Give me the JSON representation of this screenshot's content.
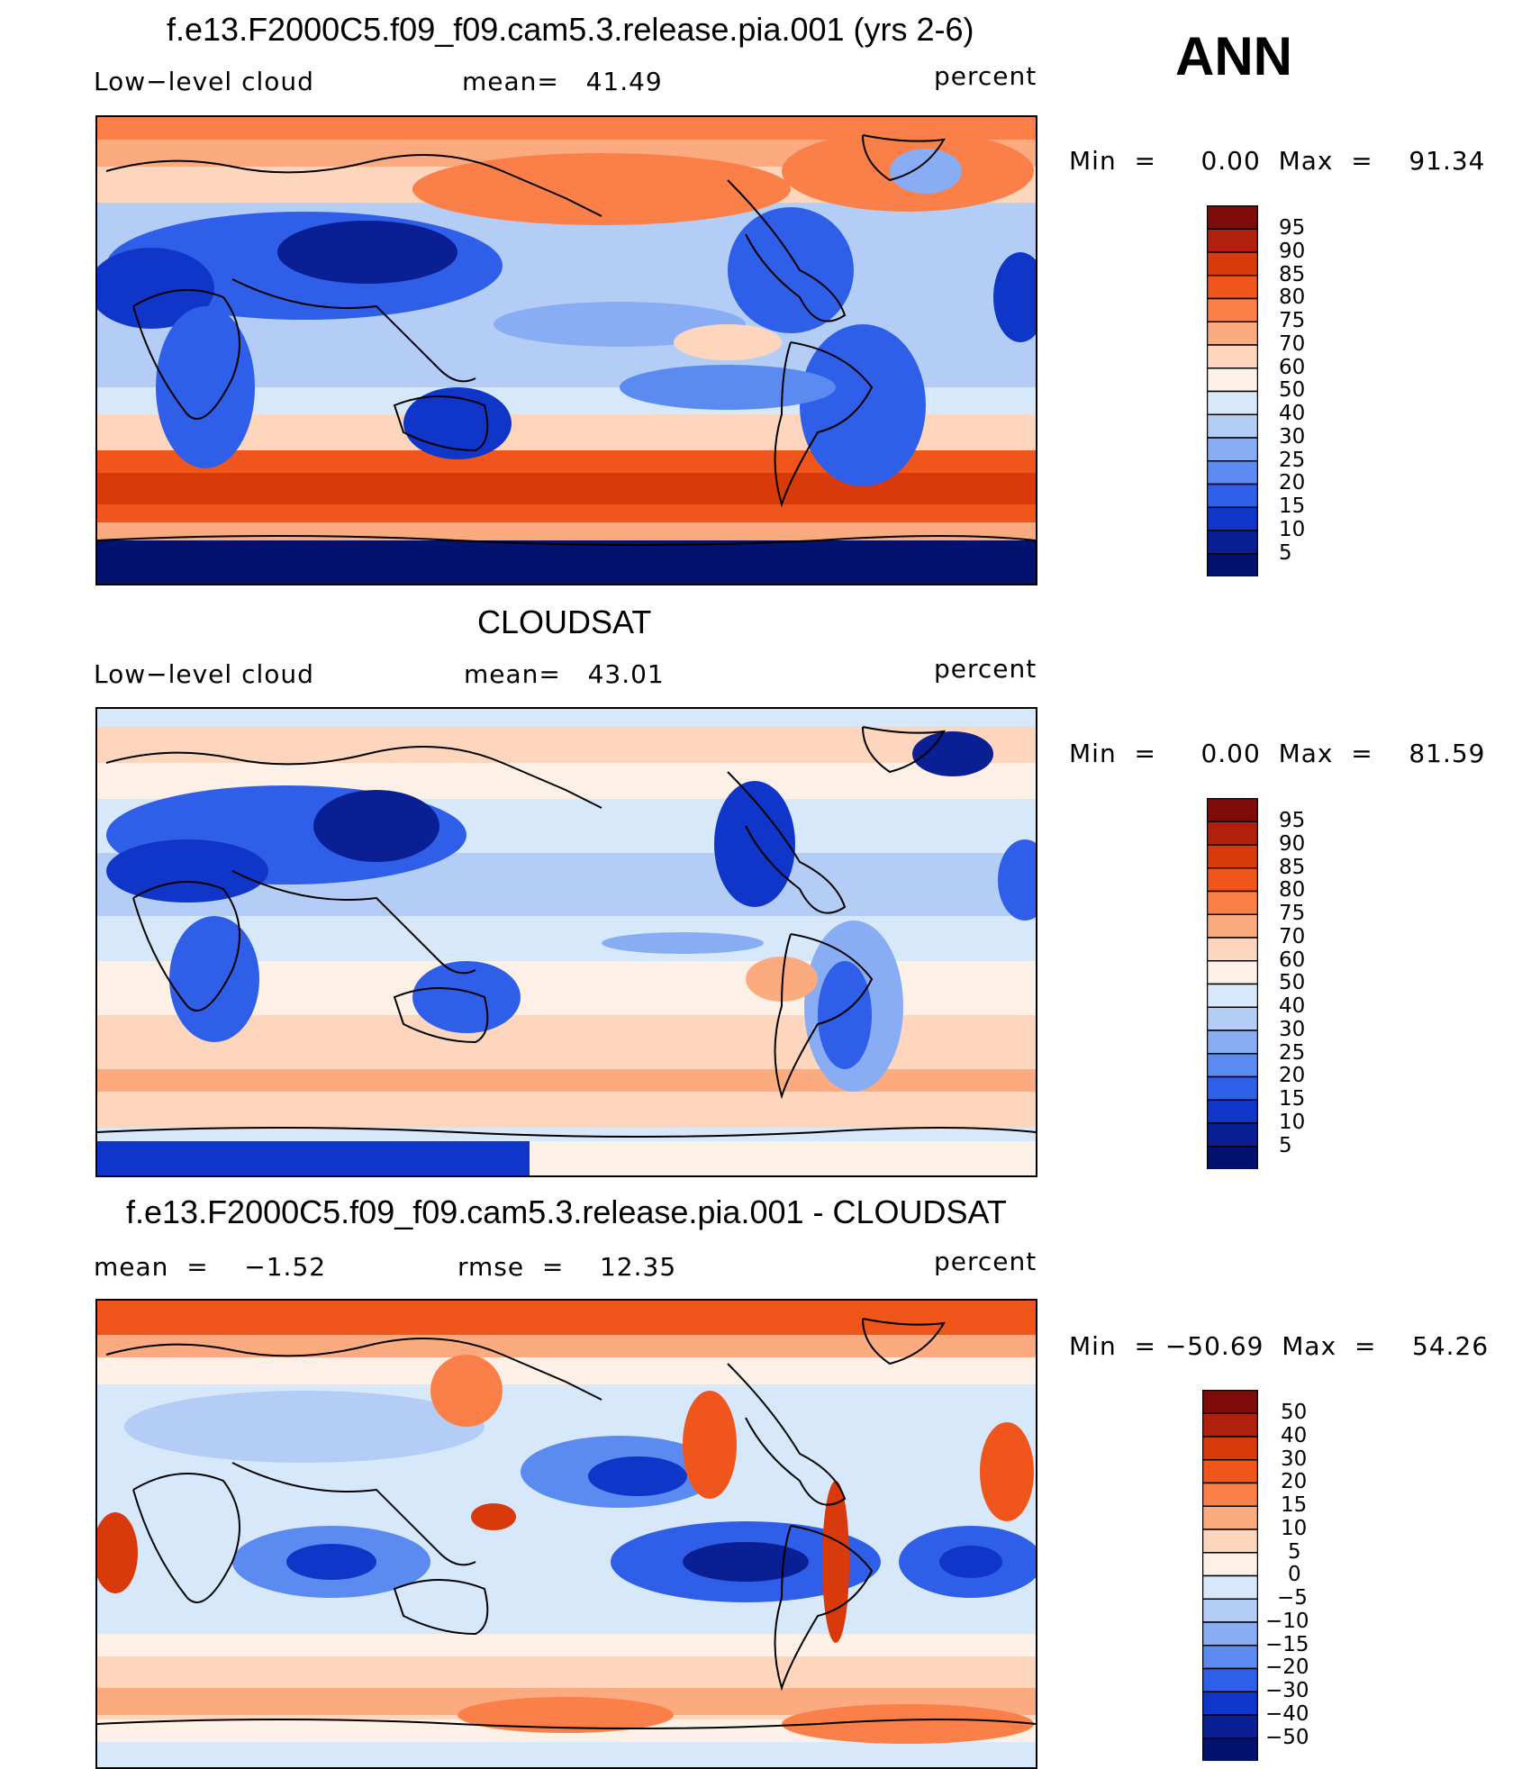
{
  "season": "ANN",
  "panels": [
    {
      "title": "f.e13.F2000C5.f09_f09.cam5.3.release.pia.001 (yrs 2-6)",
      "left_text": "Low−level cloud",
      "mid_text": "mean=   41.49",
      "right_text": "percent",
      "minmax": "Min  =     0.00  Max  =    91.34",
      "colorbar_labels": [
        "95",
        "90",
        "85",
        "80",
        "75",
        "70",
        "60",
        "50",
        "40",
        "30",
        "25",
        "20",
        "15",
        "10",
        "5"
      ]
    },
    {
      "title": "CLOUDSAT",
      "left_text": "Low−level cloud",
      "mid_text": "mean=   43.01",
      "right_text": "percent",
      "minmax": "Min  =     0.00  Max  =    81.59",
      "colorbar_labels": [
        "95",
        "90",
        "85",
        "80",
        "75",
        "70",
        "60",
        "50",
        "40",
        "30",
        "25",
        "20",
        "15",
        "10",
        "5"
      ]
    },
    {
      "title": "f.e13.F2000C5.f09_f09.cam5.3.release.pia.001 - CLOUDSAT",
      "left_text": "mean  =    −1.52",
      "mid_text": "rmse  =    12.35",
      "right_text": "percent",
      "minmax": "Min  = −50.69  Max  =    54.26",
      "colorbar_labels": [
        "50",
        "40",
        "30",
        "20",
        "15",
        "10",
        "5",
        "0",
        "−5",
        "−10",
        "−15",
        "−20",
        "−30",
        "−40",
        "−50"
      ]
    }
  ],
  "colors": {
    "ramp": [
      "#7f0b0b",
      "#b0200d",
      "#d93a0c",
      "#f0561c",
      "#fa7f49",
      "#fcab80",
      "#fdd6bd",
      "#fdf0e6",
      "#d8e8fb",
      "#b3cdf7",
      "#89adf4",
      "#5b8af0",
      "#2f5ee8",
      "#0f36c9",
      "#0a1f93",
      "#03126e"
    ]
  }
}
